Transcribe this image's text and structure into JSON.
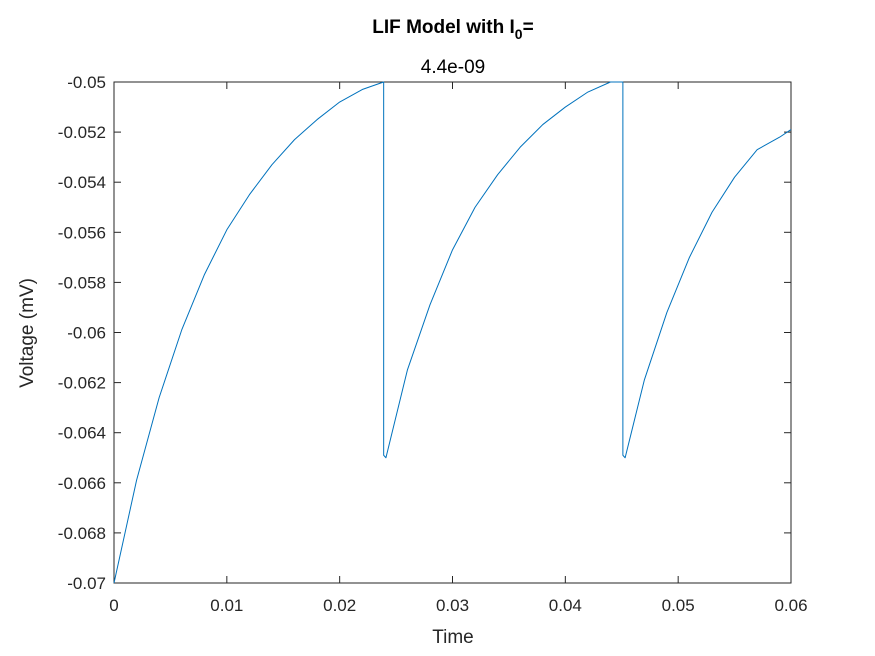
{
  "chart_data": {
    "type": "line",
    "title": {
      "prefix": "LIF Model with I",
      "subscript": "0",
      "suffix": "="
    },
    "subtitle": "4.4e-09",
    "xlabel": "Time",
    "ylabel": "Voltage (mV)",
    "xlim": [
      0,
      0.06
    ],
    "ylim": [
      -0.07,
      -0.05
    ],
    "x_ticks": [
      "0",
      "0.01",
      "0.02",
      "0.03",
      "0.04",
      "0.05",
      "0.06"
    ],
    "y_ticks": [
      "-0.05",
      "-0.052",
      "-0.054",
      "-0.056",
      "-0.058",
      "-0.06",
      "-0.062",
      "-0.064",
      "-0.066",
      "-0.068",
      "-0.07"
    ],
    "grid": false,
    "series": [
      {
        "color": "#0072BD",
        "x": [
          0,
          0.002,
          0.004,
          0.006,
          0.008,
          0.01,
          0.012,
          0.014,
          0.016,
          0.018,
          0.02,
          0.022,
          0.0239,
          0.0239,
          0.0241,
          0.026,
          0.028,
          0.03,
          0.032,
          0.034,
          0.036,
          0.038,
          0.04,
          0.042,
          0.044,
          0.0451,
          0.0451,
          0.0453,
          0.047,
          0.049,
          0.051,
          0.053,
          0.055,
          0.057,
          0.059,
          0.06
        ],
        "y": [
          -0.07,
          -0.0659,
          -0.0626,
          -0.0599,
          -0.0577,
          -0.0559,
          -0.0545,
          -0.0533,
          -0.0523,
          -0.0515,
          -0.0508,
          -0.0503,
          -0.05,
          -0.0649,
          -0.065,
          -0.0615,
          -0.0589,
          -0.0567,
          -0.055,
          -0.0537,
          -0.0526,
          -0.0517,
          -0.051,
          -0.0504,
          -0.05,
          -0.05,
          -0.0649,
          -0.065,
          -0.0619,
          -0.0592,
          -0.057,
          -0.0552,
          -0.0538,
          -0.0527,
          -0.0522,
          -0.0519
        ]
      }
    ]
  }
}
